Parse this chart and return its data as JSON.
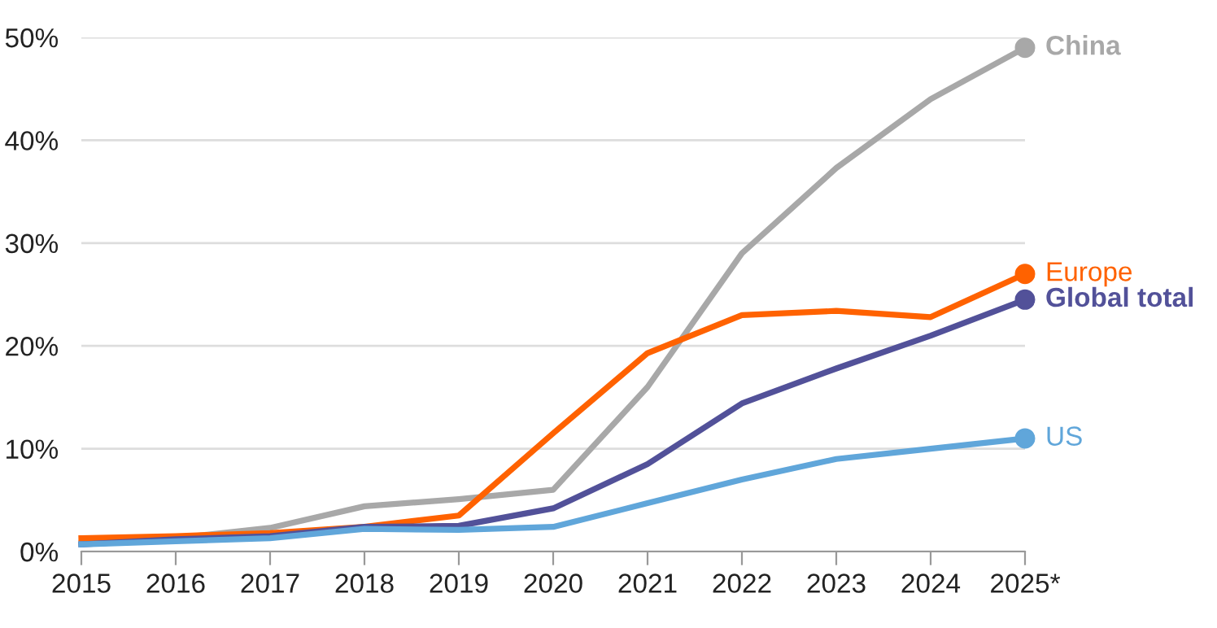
{
  "chart_data": {
    "type": "line",
    "categories": [
      "2015",
      "2016",
      "2017",
      "2018",
      "2019",
      "2020",
      "2021",
      "2022",
      "2023",
      "2024",
      "2025*"
    ],
    "series": [
      {
        "name": "China",
        "color": "#a8a8a8",
        "values": [
          0.8,
          1.3,
          2.3,
          4.4,
          5.1,
          6.0,
          16.0,
          29.0,
          37.3,
          44.0,
          49.0
        ]
      },
      {
        "name": "Europe",
        "color": "#ff6200",
        "values": [
          1.3,
          1.5,
          1.8,
          2.4,
          3.5,
          11.5,
          19.3,
          23.0,
          23.4,
          22.8,
          27.0
        ]
      },
      {
        "name": "Global total",
        "color": "#525199",
        "values": [
          0.7,
          1.2,
          1.5,
          2.4,
          2.5,
          4.2,
          8.5,
          14.4,
          17.8,
          21.0,
          24.5
        ]
      },
      {
        "name": "US",
        "color": "#60a6da",
        "values": [
          0.7,
          1.0,
          1.3,
          2.2,
          2.1,
          2.4,
          4.7,
          7.0,
          9.0,
          10.0,
          11.0
        ]
      }
    ],
    "ylim": [
      0,
      50
    ],
    "yticks": [
      {
        "value": 0,
        "label": "0%"
      },
      {
        "value": 10,
        "label": "10%"
      },
      {
        "value": 20,
        "label": "20%"
      },
      {
        "value": 30,
        "label": "30%"
      },
      {
        "value": 40,
        "label": "40%"
      },
      {
        "value": 50,
        "label": "50%"
      }
    ],
    "grid": "y",
    "legend": false,
    "line_style": "solid"
  }
}
